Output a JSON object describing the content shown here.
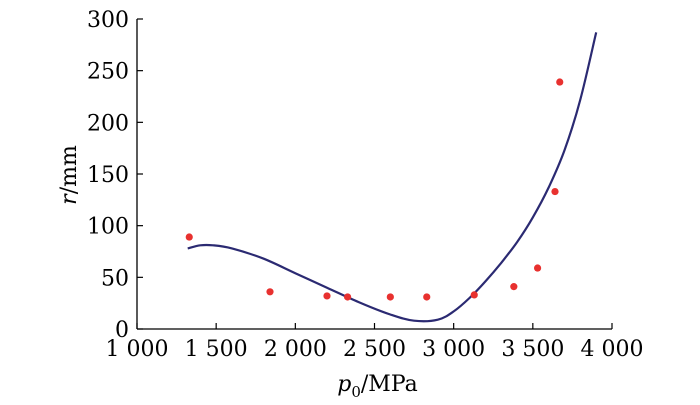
{
  "chart_data": {
    "type": "scatter",
    "xlabel": {
      "var": "p",
      "sub": "0",
      "unit": "/MPa"
    },
    "ylabel": {
      "var": "r",
      "unit": "/mm"
    },
    "xlim": [
      1000,
      4000
    ],
    "ylim": [
      0,
      300
    ],
    "x_ticks": [
      1000,
      1500,
      2000,
      2500,
      3000,
      3500,
      4000
    ],
    "x_tick_labels": [
      "1 000",
      "1 500",
      "2 000",
      "2 500",
      "3 000",
      "3 500",
      "4 000"
    ],
    "y_ticks": [
      0,
      50,
      100,
      150,
      200,
      250,
      300
    ],
    "y_tick_labels": [
      "0",
      "50",
      "100",
      "150",
      "200",
      "250",
      "300"
    ],
    "grid": false,
    "series": [
      {
        "kind": "points",
        "color": "#e8312f",
        "points": [
          {
            "x": 1330,
            "y": 89
          },
          {
            "x": 1840,
            "y": 36
          },
          {
            "x": 2200,
            "y": 32
          },
          {
            "x": 2330,
            "y": 31
          },
          {
            "x": 2600,
            "y": 31
          },
          {
            "x": 2830,
            "y": 31
          },
          {
            "x": 3130,
            "y": 33
          },
          {
            "x": 3380,
            "y": 41
          },
          {
            "x": 3530,
            "y": 59
          },
          {
            "x": 3640,
            "y": 133
          },
          {
            "x": 3670,
            "y": 239
          }
        ]
      },
      {
        "kind": "fit-curve",
        "color": "#2b2a72",
        "points": [
          {
            "x": 1320,
            "y": 78
          },
          {
            "x": 1400,
            "y": 81
          },
          {
            "x": 1480,
            "y": 81
          },
          {
            "x": 1600,
            "y": 78
          },
          {
            "x": 1800,
            "y": 68
          },
          {
            "x": 2000,
            "y": 54
          },
          {
            "x": 2200,
            "y": 40
          },
          {
            "x": 2400,
            "y": 26
          },
          {
            "x": 2600,
            "y": 14
          },
          {
            "x": 2750,
            "y": 8
          },
          {
            "x": 2900,
            "y": 9
          },
          {
            "x": 3000,
            "y": 17
          },
          {
            "x": 3100,
            "y": 30
          },
          {
            "x": 3200,
            "y": 46
          },
          {
            "x": 3300,
            "y": 64
          },
          {
            "x": 3400,
            "y": 84
          },
          {
            "x": 3500,
            "y": 108
          },
          {
            "x": 3600,
            "y": 137
          },
          {
            "x": 3700,
            "y": 173
          },
          {
            "x": 3800,
            "y": 222
          },
          {
            "x": 3900,
            "y": 287
          }
        ]
      }
    ]
  }
}
